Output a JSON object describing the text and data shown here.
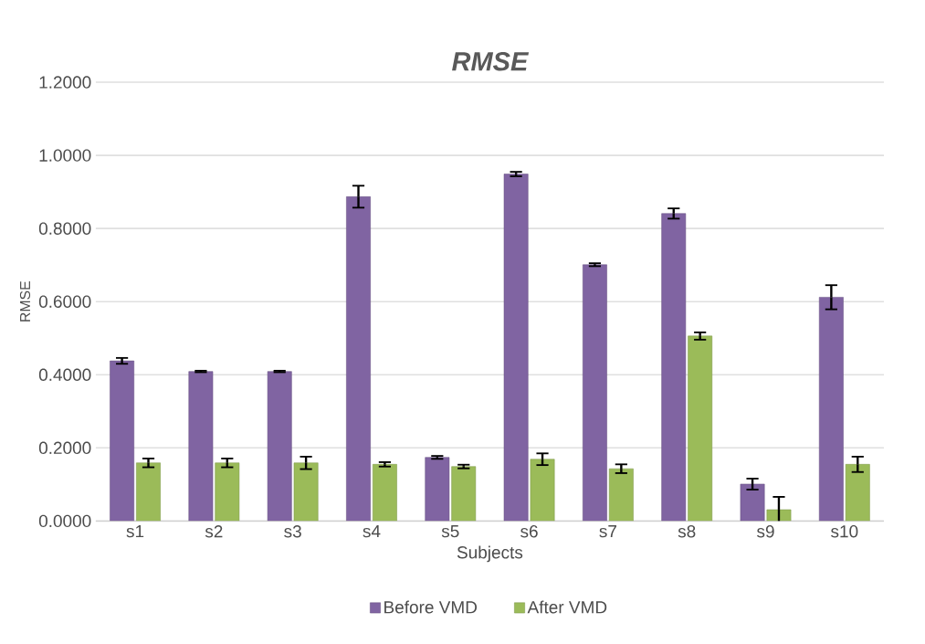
{
  "chart_data": {
    "type": "bar",
    "title": "RMSE",
    "xlabel": "Subjects",
    "ylabel": "RMSE",
    "categories": [
      "s1",
      "s2",
      "s3",
      "s4",
      "s5",
      "s6",
      "s7",
      "s8",
      "s9",
      "s10"
    ],
    "series": [
      {
        "name": "Before VMD",
        "color": "#8064a2",
        "values": [
          0.438,
          0.409,
          0.409,
          0.887,
          0.174,
          0.949,
          0.701,
          0.841,
          0.101,
          0.612
        ],
        "errors": [
          0.008,
          0.002,
          0.002,
          0.03,
          0.004,
          0.006,
          0.004,
          0.014,
          0.015,
          0.033
        ]
      },
      {
        "name": "After VMD",
        "color": "#9bbb59",
        "values": [
          0.159,
          0.159,
          0.159,
          0.155,
          0.149,
          0.169,
          0.143,
          0.506,
          0.031,
          0.155
        ],
        "errors": [
          0.012,
          0.012,
          0.017,
          0.006,
          0.005,
          0.016,
          0.012,
          0.01,
          0.035,
          0.021
        ]
      }
    ],
    "ylim": [
      0,
      1.2
    ],
    "yticks": [
      {
        "value": 0,
        "label": "0.0000"
      },
      {
        "value": 0.2,
        "label": "0.2000"
      },
      {
        "value": 0.4,
        "label": "0.4000"
      },
      {
        "value": 0.6,
        "label": "0.6000"
      },
      {
        "value": 0.8,
        "label": "0.8000"
      },
      {
        "value": 1.0,
        "label": "1.0000"
      },
      {
        "value": 1.2,
        "label": "1.2000"
      }
    ],
    "grid": "y",
    "legend": "bottom"
  }
}
